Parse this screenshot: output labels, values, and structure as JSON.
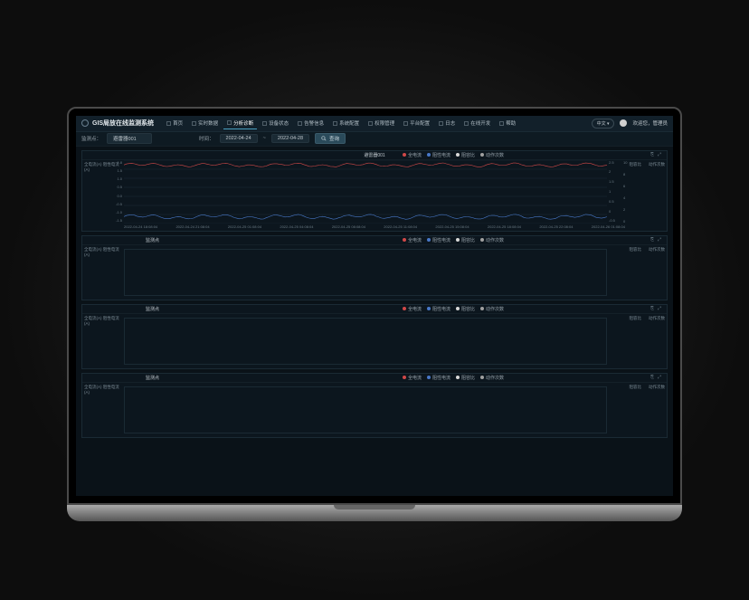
{
  "app": {
    "title": "GIS局放在线监测系统",
    "language": "中文 ▾",
    "welcome_prefix": "欢迎您，",
    "user_name": "管理员"
  },
  "nav": [
    {
      "label": "首页",
      "icon": "home"
    },
    {
      "label": "实时数据",
      "icon": "pulse"
    },
    {
      "label": "分析诊断",
      "icon": "chart",
      "active": true
    },
    {
      "label": "设备状态",
      "icon": "device"
    },
    {
      "label": "告警信息",
      "icon": "bell"
    },
    {
      "label": "系统配置",
      "icon": "sliders"
    },
    {
      "label": "权限管理",
      "icon": "shield"
    },
    {
      "label": "平台配置",
      "icon": "cog"
    },
    {
      "label": "日志",
      "icon": "log"
    },
    {
      "label": "在线开发",
      "icon": "code"
    },
    {
      "label": "帮助",
      "icon": "help"
    }
  ],
  "toolbar": {
    "point_label": "监测点：",
    "point_value": "避雷器001",
    "time_label": "时间：",
    "date_from": "2022-04-24",
    "date_sep": "~",
    "date_to": "2022-04-28",
    "query": "查询"
  },
  "legend_items": [
    {
      "label": "全电流",
      "color": "#d04848"
    },
    {
      "label": "阻性电流",
      "color": "#4878c8"
    },
    {
      "label": "阻容比",
      "color": "#d8d8d8"
    },
    {
      "label": "动作次数",
      "color": "#a0a0a0"
    }
  ],
  "panels": [
    {
      "title": "避雷器001",
      "has_data": true,
      "y_left_label": "全电流(A)  阻性电流(A)",
      "y_right1_label": "阻容比",
      "y_right2_label": "动作次数",
      "y_left_ticks": [
        "1.8",
        "1.5",
        "1.0",
        "0.5",
        "0.0",
        "-0.5",
        "-1.0",
        "-1.5"
      ],
      "y_right1_ticks": [
        "2.5",
        "2",
        "1.5",
        "1",
        "0.5",
        "0",
        "-0.5"
      ],
      "y_right2_ticks": [
        "10",
        "8",
        "6",
        "4",
        "2",
        "0"
      ],
      "x_ticks": [
        "2022-04-24 18:08:04",
        "2022-04-24 21:08:04",
        "2022-04-25 01:08:04",
        "2022-04-25 04:08:04",
        "2022-04-25 08:08:04",
        "2022-04-25 11:08:04",
        "2022-04-25 15:08:04",
        "2022-04-25 18:08:04",
        "2022-04-25 22:08:04",
        "2022-04-26 01:08:04"
      ],
      "series_red": {
        "base": 1.55,
        "amp": 0.1,
        "color": "#d04848"
      },
      "series_blue": {
        "base": -1.15,
        "amp": 0.12,
        "color": "#4878c8"
      }
    },
    {
      "title": "监测点",
      "has_data": false,
      "y_left_label": "全电流(A)  阻性电流(A)",
      "y_right1_label": "阻容比",
      "y_right2_label": "动作次数"
    },
    {
      "title": "监测点",
      "has_data": false,
      "y_left_label": "全电流(A)  阻性电流(A)",
      "y_right1_label": "阻容比",
      "y_right2_label": "动作次数"
    },
    {
      "title": "监测点",
      "has_data": false,
      "y_left_label": "全电流(A)  阻性电流(A)",
      "y_right1_label": "阻容比",
      "y_right2_label": "动作次数"
    }
  ],
  "colors": {
    "bg": "#0a1218",
    "panel_border": "#1a2a34",
    "grid": "#1a2a34",
    "text_dim": "#7a8a94"
  }
}
